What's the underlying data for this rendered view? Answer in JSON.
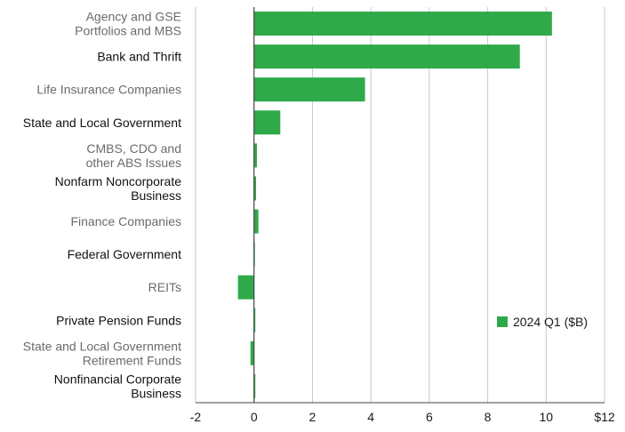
{
  "chart_data": {
    "type": "bar",
    "orientation": "horizontal",
    "title": "",
    "xlabel": "",
    "ylabel": "",
    "xlim": [
      -2,
      12
    ],
    "xticks": [
      {
        "value": -2,
        "label": "-2"
      },
      {
        "value": 0,
        "label": "0"
      },
      {
        "value": 2,
        "label": "2"
      },
      {
        "value": 4,
        "label": "4"
      },
      {
        "value": 6,
        "label": "6"
      },
      {
        "value": 8,
        "label": "8"
      },
      {
        "value": 10,
        "label": "10"
      },
      {
        "value": 12,
        "label": "$12"
      }
    ],
    "grid": true,
    "categories": [
      {
        "lines": [
          "Agency and GSE",
          "Portfolios and MBS"
        ],
        "muted": true
      },
      {
        "lines": [
          "Bank and Thrift"
        ],
        "muted": false
      },
      {
        "lines": [
          "Life Insurance Companies"
        ],
        "muted": true
      },
      {
        "lines": [
          "State and Local Government"
        ],
        "muted": false
      },
      {
        "lines": [
          "CMBS, CDO and",
          "other ABS Issues"
        ],
        "muted": true
      },
      {
        "lines": [
          "Nonfarm Noncorporate",
          "Business"
        ],
        "muted": false
      },
      {
        "lines": [
          "Finance Companies"
        ],
        "muted": true
      },
      {
        "lines": [
          "Federal Government"
        ],
        "muted": false
      },
      {
        "lines": [
          "REITs"
        ],
        "muted": true
      },
      {
        "lines": [
          "Private Pension Funds"
        ],
        "muted": false
      },
      {
        "lines": [
          "State and Local Government",
          "Retirement Funds"
        ],
        "muted": true
      },
      {
        "lines": [
          "Nonfinancial Corporate",
          "Business"
        ],
        "muted": false
      }
    ],
    "series": [
      {
        "name": "2024 Q1 ($B)",
        "color": "#2eaa4a",
        "values": [
          10.2,
          9.1,
          3.8,
          0.9,
          0.1,
          0.07,
          0.15,
          0.0,
          -0.55,
          0.01,
          -0.12,
          0.02
        ]
      }
    ],
    "legend": {
      "label": "2024 Q1 ($B)",
      "position": "bottom-right"
    }
  },
  "colors": {
    "bar": "#2eaa4a",
    "label_dark": "#111111",
    "label_muted": "#6b6b6b",
    "grid": "#c8c8c8",
    "axis": "#444444"
  }
}
